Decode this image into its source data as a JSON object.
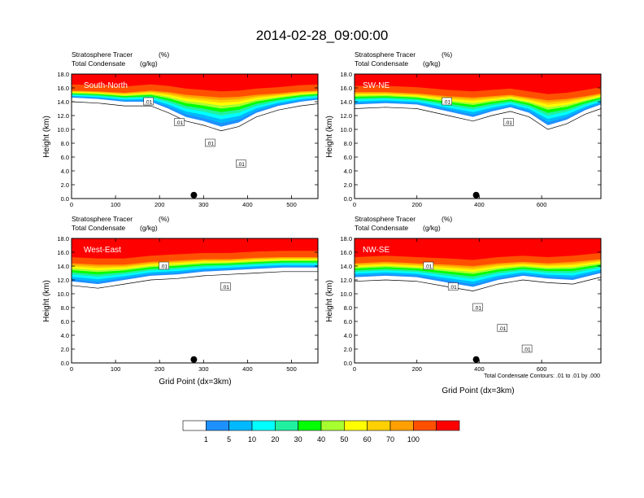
{
  "title": "2014-02-28_09:00:00",
  "colors": {
    "levels": [
      "#ffffff",
      "#1e90ff",
      "#00b8ff",
      "#00ffff",
      "#20f0a0",
      "#00ff00",
      "#a8ff30",
      "#ffff00",
      "#ffd000",
      "#ffa000",
      "#ff5000",
      "#ff0000"
    ]
  },
  "chart_data": [
    {
      "type": "heatmap",
      "subtitle_var1": "Stratosphere Tracer",
      "subtitle_unit1": "(%)",
      "subtitle_var2": "Total Condensate",
      "subtitle_unit2": "(g/kg)",
      "panel_label": "South-North",
      "ylabel": "Height (km)",
      "xlabel": "",
      "ylim": [
        0,
        18
      ],
      "xlim": [
        0,
        560
      ],
      "xticks": [
        "0",
        "100",
        "200",
        "300",
        "400",
        "500"
      ],
      "yticks": [
        "0.0",
        "2.0",
        "4.0",
        "6.0",
        "8.0",
        "10.0",
        "12.0",
        "14.0",
        "16.0",
        "18.0"
      ],
      "contour_labels": [
        ".01",
        ".01",
        ".01",
        ".01"
      ],
      "marker_x": 278,
      "tracer_profile": [
        {
          "x": 0,
          "base": 14.6,
          "top": 15.6
        },
        {
          "x": 60,
          "base": 14.4,
          "top": 15.5
        },
        {
          "x": 120,
          "base": 14.0,
          "top": 15.3
        },
        {
          "x": 180,
          "base": 14.0,
          "top": 15.6
        },
        {
          "x": 220,
          "base": 13.0,
          "top": 15.4
        },
        {
          "x": 260,
          "base": 11.8,
          "top": 15.0
        },
        {
          "x": 300,
          "base": 11.2,
          "top": 14.8
        },
        {
          "x": 340,
          "base": 10.4,
          "top": 14.6
        },
        {
          "x": 380,
          "base": 11.0,
          "top": 14.7
        },
        {
          "x": 420,
          "base": 12.4,
          "top": 15.0
        },
        {
          "x": 470,
          "base": 13.4,
          "top": 15.2
        },
        {
          "x": 520,
          "base": 14.0,
          "top": 15.5
        },
        {
          "x": 560,
          "base": 14.3,
          "top": 15.6
        }
      ]
    },
    {
      "type": "heatmap",
      "subtitle_var1": "Stratosphere Tracer",
      "subtitle_unit1": "(%)",
      "subtitle_var2": "Total Condensate",
      "subtitle_unit2": "(g/kg)",
      "panel_label": "SW-NE",
      "ylabel": "Height (km)",
      "xlabel": "",
      "ylim": [
        0,
        18
      ],
      "xlim": [
        0,
        790
      ],
      "xticks": [
        "0",
        "200",
        "400",
        "600"
      ],
      "yticks": [
        "0.0",
        "2.0",
        "4.0",
        "6.0",
        "8.0",
        "10.0",
        "12.0",
        "14.0",
        "16.0",
        "18.0"
      ],
      "contour_labels": [
        ".01",
        ".01"
      ],
      "marker_x": 390,
      "tracer_profile": [
        {
          "x": 0,
          "base": 13.6,
          "top": 15.4
        },
        {
          "x": 100,
          "base": 13.8,
          "top": 15.4
        },
        {
          "x": 200,
          "base": 13.6,
          "top": 15.2
        },
        {
          "x": 300,
          "base": 12.6,
          "top": 14.8
        },
        {
          "x": 380,
          "base": 11.8,
          "top": 14.6
        },
        {
          "x": 440,
          "base": 12.6,
          "top": 14.8
        },
        {
          "x": 500,
          "base": 13.2,
          "top": 15.0
        },
        {
          "x": 560,
          "base": 12.4,
          "top": 14.6
        },
        {
          "x": 620,
          "base": 10.6,
          "top": 14.2
        },
        {
          "x": 680,
          "base": 11.4,
          "top": 14.4
        },
        {
          "x": 740,
          "base": 12.8,
          "top": 14.8
        },
        {
          "x": 790,
          "base": 13.6,
          "top": 15.2
        }
      ]
    },
    {
      "type": "heatmap",
      "subtitle_var1": "Stratosphere Tracer",
      "subtitle_unit1": "(%)",
      "subtitle_var2": "Total Condensate",
      "subtitle_unit2": "(g/kg)",
      "panel_label": "West-East",
      "ylabel": "Height (km)",
      "xlabel": "Grid Point (dx=3km)",
      "ylim": [
        0,
        18
      ],
      "xlim": [
        0,
        560
      ],
      "xticks": [
        "0",
        "100",
        "200",
        "300",
        "400",
        "500"
      ],
      "yticks": [
        "0.0",
        "2.0",
        "4.0",
        "6.0",
        "8.0",
        "10.0",
        "12.0",
        "14.0",
        "16.0",
        "18.0"
      ],
      "contour_labels": [
        ".01",
        ".01"
      ],
      "marker_x": 278,
      "tracer_profile": [
        {
          "x": 0,
          "base": 11.8,
          "top": 14.4
        },
        {
          "x": 60,
          "base": 11.4,
          "top": 14.2
        },
        {
          "x": 120,
          "base": 12.0,
          "top": 14.2
        },
        {
          "x": 180,
          "base": 12.6,
          "top": 14.6
        },
        {
          "x": 240,
          "base": 12.8,
          "top": 14.8
        },
        {
          "x": 300,
          "base": 13.2,
          "top": 15.0
        },
        {
          "x": 360,
          "base": 13.4,
          "top": 15.0
        },
        {
          "x": 420,
          "base": 13.6,
          "top": 15.2
        },
        {
          "x": 480,
          "base": 13.8,
          "top": 15.3
        },
        {
          "x": 560,
          "base": 13.8,
          "top": 15.3
        }
      ]
    },
    {
      "type": "heatmap",
      "subtitle_var1": "Stratosphere Tracer",
      "subtitle_unit1": "(%)",
      "subtitle_var2": "Total Condensate",
      "subtitle_unit2": "(g/kg)",
      "panel_label": "NW-SE",
      "ylabel": "Height (km)",
      "xlabel": "Grid Point (dx=3km)",
      "ylim": [
        0,
        18
      ],
      "xlim": [
        0,
        790
      ],
      "xticks": [
        "0",
        "200",
        "400",
        "600"
      ],
      "yticks": [
        "0.0",
        "2.0",
        "4.0",
        "6.0",
        "8.0",
        "10.0",
        "12.0",
        "14.0",
        "16.0",
        "18.0"
      ],
      "contour_labels": [
        ".01",
        ".01",
        ".01",
        ".01",
        ".01"
      ],
      "marker_x": 390,
      "tracer_profile": [
        {
          "x": 0,
          "base": 12.4,
          "top": 14.4
        },
        {
          "x": 100,
          "base": 12.6,
          "top": 14.6
        },
        {
          "x": 200,
          "base": 12.4,
          "top": 14.4
        },
        {
          "x": 300,
          "base": 11.6,
          "top": 14.2
        },
        {
          "x": 380,
          "base": 11.0,
          "top": 14.0
        },
        {
          "x": 460,
          "base": 12.0,
          "top": 14.4
        },
        {
          "x": 540,
          "base": 12.6,
          "top": 14.6
        },
        {
          "x": 620,
          "base": 12.2,
          "top": 14.4
        },
        {
          "x": 700,
          "base": 12.0,
          "top": 14.6
        },
        {
          "x": 790,
          "base": 13.0,
          "top": 15.0
        }
      ]
    }
  ],
  "footnote": "Total Condensate Contours: .01 to .01 by .000",
  "colorbar": {
    "labels": [
      "1",
      "5",
      "10",
      "20",
      "30",
      "40",
      "50",
      "60",
      "70",
      "100"
    ]
  }
}
